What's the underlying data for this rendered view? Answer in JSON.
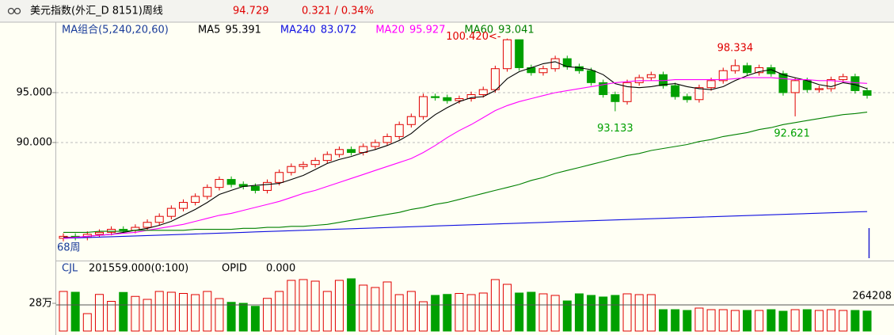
{
  "header": {
    "title": "美元指数(外汇_D 8151)周线",
    "price": 94.729,
    "change": "0.321 / 0.34%"
  },
  "chart_data": [
    {
      "type": "candlestick",
      "legend_title": "MA组合(5,240,20,60)",
      "period_label": "68周",
      "peak_label": "100.420<-",
      "up_color": "#e00000",
      "down_color": "#00a000",
      "ylim": [
        78.25,
        102.06
      ],
      "yticks": [
        {
          "value": 95,
          "label": "95.000"
        },
        {
          "value": 90,
          "label": "90.000"
        }
      ],
      "grid": true,
      "open": [
        80.4,
        80.6,
        80.5,
        80.8,
        81.0,
        81.3,
        81.2,
        81.5,
        82.0,
        82.6,
        83.4,
        84.0,
        84.6,
        85.5,
        86.3,
        85.8,
        85.6,
        85.2,
        86.0,
        87.0,
        87.6,
        87.8,
        88.2,
        88.8,
        89.3,
        89.0,
        89.6,
        90.0,
        90.6,
        91.8,
        92.6,
        94.6,
        94.5,
        94.2,
        94.4,
        94.8,
        95.3,
        97.4,
        100.3,
        97.5,
        97.0,
        97.4,
        98.4,
        97.6,
        97.2,
        96.0,
        94.8,
        94.1,
        96.0,
        96.5,
        96.8,
        95.7,
        94.6,
        94.3,
        95.5,
        96.2,
        97.2,
        97.7,
        97.0,
        97.5,
        96.9,
        95.0,
        96.2,
        95.3,
        95.4,
        96.3,
        96.6,
        95.2
      ],
      "high": [
        80.9,
        80.9,
        81.1,
        81.3,
        81.6,
        81.6,
        81.8,
        82.3,
        82.9,
        83.7,
        84.3,
        84.9,
        85.8,
        86.6,
        86.6,
        86.1,
        85.9,
        86.3,
        87.3,
        87.9,
        88.1,
        88.5,
        89.1,
        89.6,
        89.6,
        89.9,
        90.3,
        90.9,
        92.1,
        92.9,
        94.9,
        94.9,
        94.8,
        94.7,
        95.1,
        95.6,
        97.7,
        100.42,
        100.3,
        97.8,
        97.7,
        98.7,
        98.7,
        97.9,
        97.5,
        96.3,
        95.1,
        96.3,
        96.8,
        97.1,
        97.1,
        96.0,
        94.9,
        95.8,
        96.5,
        97.5,
        98.334,
        98.0,
        97.8,
        97.8,
        97.2,
        96.5,
        96.5,
        95.7,
        96.6,
        96.9,
        96.9,
        95.5
      ],
      "low": [
        80.1,
        80.2,
        80.2,
        80.5,
        80.7,
        80.9,
        80.9,
        81.2,
        81.7,
        82.3,
        83.1,
        83.7,
        84.3,
        85.2,
        85.5,
        85.3,
        84.9,
        84.9,
        85.7,
        86.7,
        87.3,
        87.5,
        87.9,
        88.5,
        88.7,
        88.7,
        89.3,
        89.7,
        90.3,
        91.5,
        92.3,
        94.2,
        93.9,
        93.9,
        94.1,
        94.5,
        95.0,
        97.1,
        97.2,
        96.7,
        96.7,
        97.1,
        97.3,
        96.9,
        95.7,
        94.5,
        93.133,
        93.8,
        95.7,
        96.2,
        95.4,
        94.3,
        94.0,
        94.0,
        95.2,
        95.9,
        96.9,
        96.7,
        96.7,
        96.6,
        94.7,
        92.621,
        95.0,
        95.0,
        95.1,
        96.0,
        94.9,
        94.4
      ],
      "close": [
        80.6,
        80.5,
        80.8,
        81.0,
        81.3,
        81.2,
        81.5,
        82.0,
        82.6,
        83.4,
        84.0,
        84.6,
        85.5,
        86.3,
        85.8,
        85.6,
        85.2,
        86.0,
        87.0,
        87.6,
        87.8,
        88.2,
        88.8,
        89.3,
        89.0,
        89.6,
        90.0,
        90.6,
        91.8,
        92.6,
        94.6,
        94.5,
        94.2,
        94.4,
        94.8,
        95.3,
        97.4,
        100.3,
        97.5,
        97.0,
        97.4,
        98.4,
        97.6,
        97.2,
        96.0,
        94.8,
        94.1,
        96.0,
        96.5,
        96.8,
        95.7,
        94.6,
        94.3,
        95.5,
        96.2,
        97.2,
        97.7,
        97.0,
        97.5,
        96.9,
        95.0,
        96.2,
        95.3,
        95.4,
        96.3,
        96.6,
        95.2,
        94.729
      ],
      "series": [
        {
          "name": "MA5",
          "color": "#000000",
          "values": [
            80.5,
            80.5,
            80.6,
            80.7,
            80.8,
            81.0,
            81.2,
            81.4,
            81.7,
            82.1,
            82.7,
            83.3,
            84.0,
            84.8,
            85.2,
            85.6,
            85.7,
            85.8,
            85.9,
            86.3,
            86.7,
            87.3,
            87.9,
            88.3,
            88.6,
            89.0,
            89.3,
            89.7,
            90.2,
            90.9,
            91.9,
            92.8,
            93.5,
            94.1,
            94.5,
            94.6,
            95.2,
            96.4,
            97.1,
            97.5,
            97.9,
            98.1,
            97.6,
            97.5,
            97.3,
            96.8,
            95.9,
            95.6,
            95.5,
            95.6,
            95.8,
            95.9,
            95.6,
            95.4,
            95.3,
            95.6,
            96.2,
            96.7,
            97.1,
            97.3,
            96.8,
            96.5,
            96.2,
            95.8,
            95.6,
            96.0,
            95.8,
            95.391
          ]
        },
        {
          "name": "MA240",
          "color": "#1010e0",
          "values": [
            80.4,
            80.44,
            80.48,
            80.52,
            80.56,
            80.6,
            80.64,
            80.68,
            80.72,
            80.76,
            80.8,
            80.84,
            80.88,
            80.92,
            80.96,
            81.0,
            81.04,
            81.08,
            81.12,
            81.16,
            81.2,
            81.24,
            81.28,
            81.32,
            81.36,
            81.4,
            81.44,
            81.48,
            81.52,
            81.56,
            81.6,
            81.64,
            81.68,
            81.72,
            81.76,
            81.8,
            81.84,
            81.88,
            81.92,
            81.96,
            82.0,
            82.04,
            82.08,
            82.12,
            82.16,
            82.2,
            82.24,
            82.28,
            82.32,
            82.36,
            82.4,
            82.44,
            82.48,
            82.52,
            82.56,
            82.6,
            82.64,
            82.68,
            82.72,
            82.76,
            82.8,
            82.84,
            82.88,
            82.92,
            82.96,
            83.0,
            83.04,
            83.072
          ]
        },
        {
          "name": "MA20",
          "color": "#ff00ff",
          "values": [
            80.4,
            80.5,
            80.6,
            80.7,
            80.8,
            80.9,
            81.0,
            81.2,
            81.4,
            81.6,
            81.8,
            82.1,
            82.4,
            82.7,
            82.9,
            83.2,
            83.5,
            83.8,
            84.1,
            84.5,
            84.9,
            85.2,
            85.6,
            86.0,
            86.4,
            86.8,
            87.2,
            87.6,
            88.0,
            88.4,
            89.0,
            89.7,
            90.5,
            91.2,
            91.8,
            92.5,
            93.2,
            93.7,
            94.1,
            94.4,
            94.7,
            95.0,
            95.2,
            95.4,
            95.6,
            95.8,
            96.0,
            96.1,
            96.2,
            96.2,
            96.2,
            96.3,
            96.3,
            96.3,
            96.3,
            96.3,
            96.4,
            96.5,
            96.5,
            96.5,
            96.4,
            96.3,
            96.3,
            96.2,
            96.2,
            96.1,
            96.0,
            95.927
          ]
        },
        {
          "name": "MA60",
          "color": "#008000",
          "values": [
            81.0,
            81.0,
            81.0,
            81.1,
            81.1,
            81.1,
            81.2,
            81.2,
            81.2,
            81.2,
            81.2,
            81.3,
            81.3,
            81.3,
            81.3,
            81.4,
            81.4,
            81.5,
            81.5,
            81.6,
            81.6,
            81.7,
            81.8,
            82.0,
            82.2,
            82.4,
            82.6,
            82.8,
            83.0,
            83.3,
            83.5,
            83.8,
            84.0,
            84.3,
            84.6,
            84.9,
            85.2,
            85.5,
            85.8,
            86.2,
            86.5,
            86.9,
            87.2,
            87.5,
            87.8,
            88.1,
            88.4,
            88.7,
            88.9,
            89.2,
            89.4,
            89.6,
            89.8,
            90.1,
            90.3,
            90.6,
            90.8,
            91.0,
            91.3,
            91.5,
            91.8,
            92.0,
            92.2,
            92.4,
            92.6,
            92.8,
            92.9,
            93.041
          ]
        }
      ]
    },
    {
      "type": "bar",
      "label": "CJL",
      "readout": "201559.000(0:100)",
      "opid_label": "OPID",
      "opid_value": "0.000",
      "ylim": [
        0,
        624000
      ],
      "yticks": [
        {
          "value": 280000,
          "label": "28万"
        }
      ],
      "reference": 264208,
      "values": [
        400000,
        392000,
        176000,
        370000,
        300000,
        390000,
        350000,
        320000,
        400000,
        392000,
        380000,
        368000,
        400000,
        328000,
        290000,
        280000,
        250000,
        330000,
        400000,
        512000,
        520000,
        504000,
        400000,
        512000,
        528000,
        464000,
        440000,
        496000,
        368000,
        400000,
        296000,
        360000,
        370000,
        380000,
        368000,
        384000,
        520000,
        472000,
        384000,
        392000,
        376000,
        360000,
        304000,
        376000,
        360000,
        344000,
        360000,
        376000,
        368000,
        368000,
        216000,
        216000,
        208000,
        232000,
        216000,
        216000,
        208000,
        208000,
        208000,
        216000,
        200000,
        216000,
        216000,
        208000,
        216000,
        208000,
        208000,
        201559
      ]
    }
  ]
}
